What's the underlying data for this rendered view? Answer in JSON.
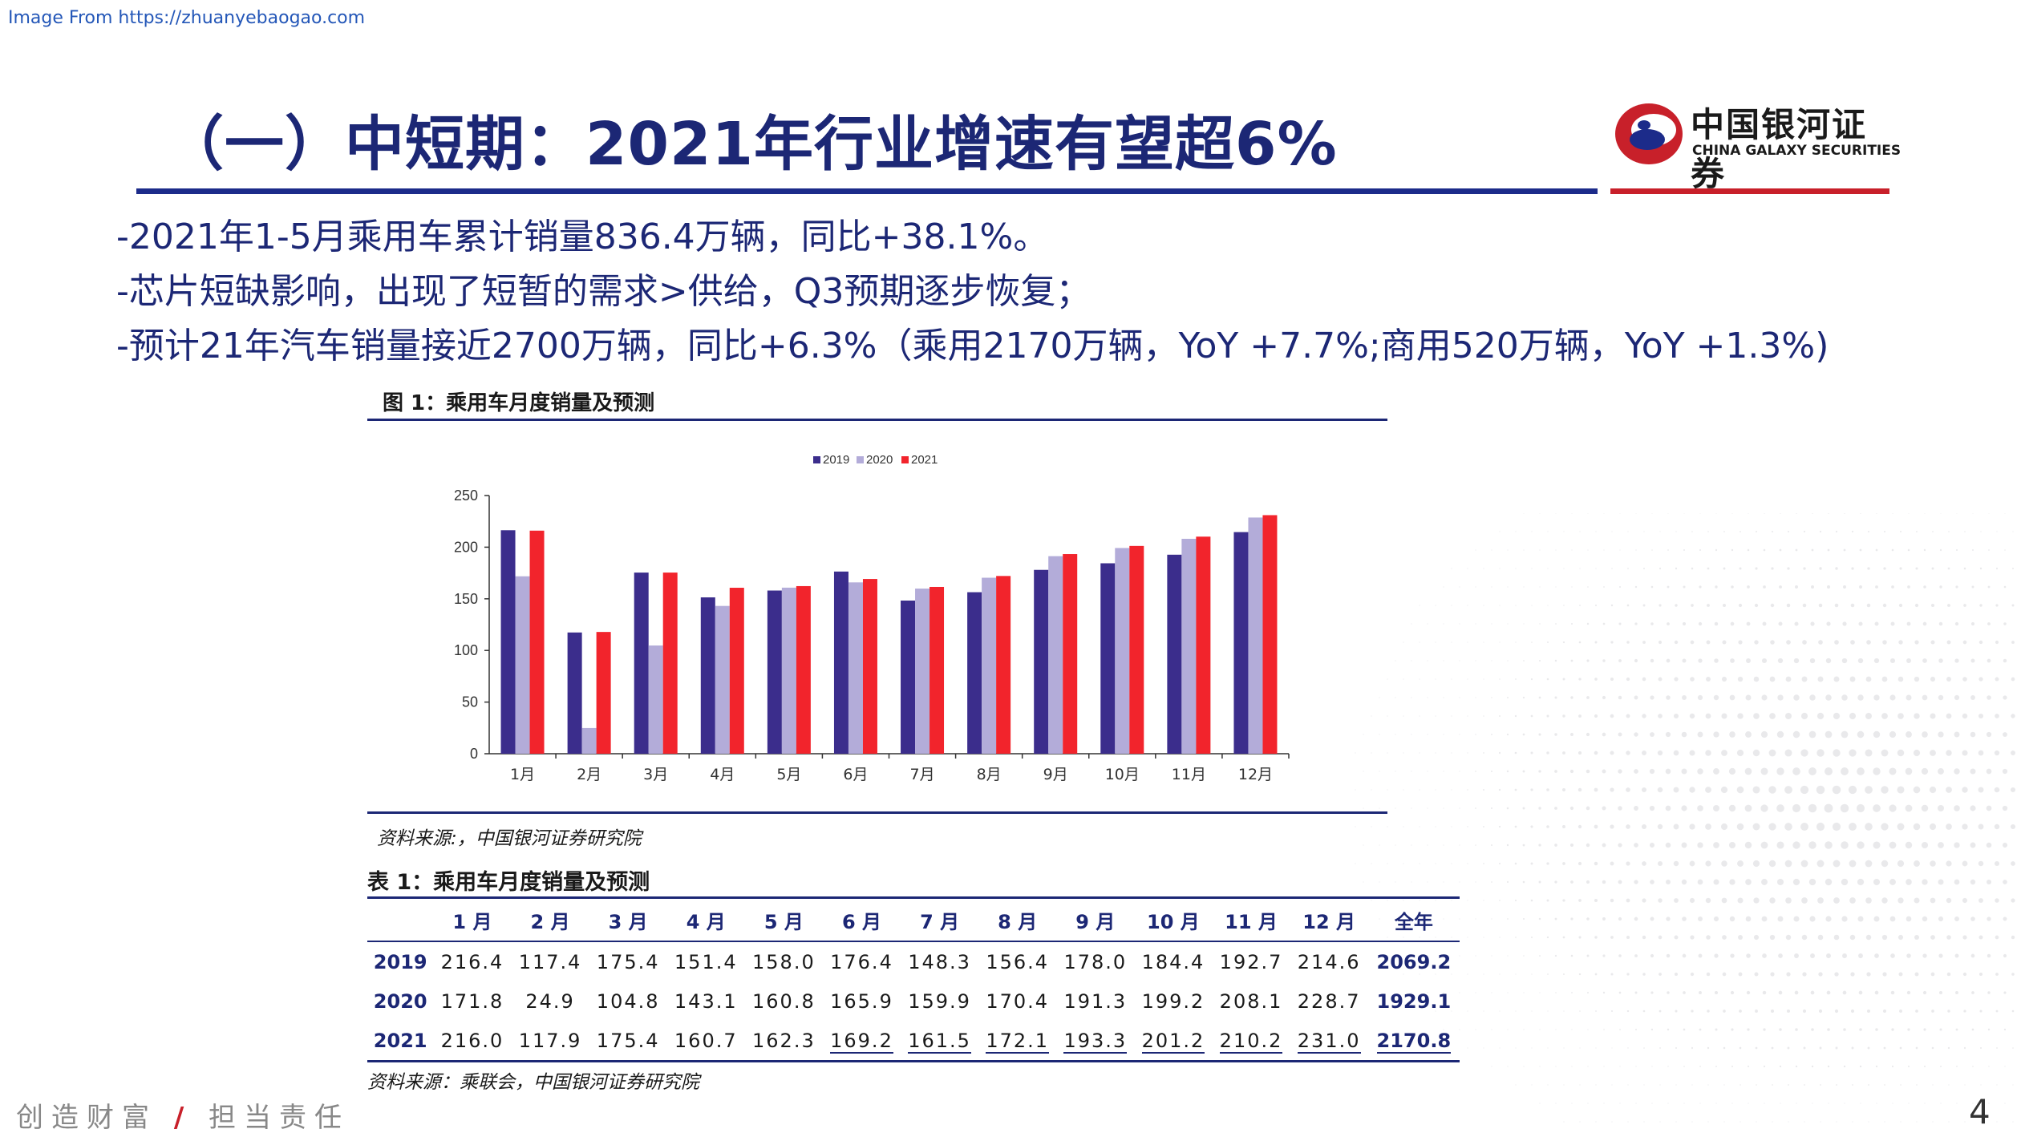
{
  "watermark": "Image From https://zhuanyebaogao.com",
  "title": "（一）中短期：2021年行业增速有望超6%",
  "logo": {
    "cn": "中国银河证券",
    "en": "CHINA GALAXY SECURITIES"
  },
  "bullets": [
    "-2021年1-5月乘用车累计销量836.4万辆，同比+38.1%。",
    "-芯片短缺影响，出现了短暂的需求>供给，Q3预期逐步恢复；",
    "-预计21年汽车销量接近2700万辆，同比+6.3%（乘用2170万辆，YoY +7.7%;商用520万辆，YoY +1.3%)"
  ],
  "figure": {
    "title": "图 1：乘用车月度销量及预测",
    "source": "资料来源:，中国银河证券研究院"
  },
  "chart_data": {
    "type": "bar",
    "categories": [
      "1月",
      "2月",
      "3月",
      "4月",
      "5月",
      "6月",
      "7月",
      "8月",
      "9月",
      "10月",
      "11月",
      "12月"
    ],
    "series": [
      {
        "name": "2019",
        "color": "#3b2d8c",
        "values": [
          216.4,
          117.4,
          175.4,
          151.4,
          158.0,
          176.4,
          148.3,
          156.4,
          178.0,
          184.4,
          192.7,
          214.6
        ]
      },
      {
        "name": "2020",
        "color": "#b3acd9",
        "values": [
          171.8,
          24.9,
          104.8,
          143.1,
          160.8,
          165.9,
          159.9,
          170.4,
          191.3,
          199.2,
          208.1,
          228.7
        ]
      },
      {
        "name": "2021",
        "color": "#f2242c",
        "values": [
          216.0,
          117.9,
          175.4,
          160.7,
          162.3,
          169.2,
          161.5,
          172.1,
          193.3,
          201.2,
          210.2,
          231.0
        ]
      }
    ],
    "yticks": [
      "0",
      "50",
      "100",
      "150",
      "200",
      "250"
    ],
    "ylim": [
      0,
      250
    ],
    "legend_position": "top-center",
    "grid": false
  },
  "table": {
    "title": "表 1：乘用车月度销量及预测",
    "headers": [
      "",
      "1 月",
      "2 月",
      "3 月",
      "4 月",
      "5 月",
      "6 月",
      "7 月",
      "8 月",
      "9 月",
      "10 月",
      "11 月",
      "12 月",
      "全年"
    ],
    "rows": [
      {
        "year": "2019",
        "cells": [
          "216.4",
          "117.4",
          "175.4",
          "151.4",
          "158.0",
          "176.4",
          "148.3",
          "156.4",
          "178.0",
          "184.4",
          "192.7",
          "214.6"
        ],
        "total": "2069.2"
      },
      {
        "year": "2020",
        "cells": [
          "171.8",
          "24.9",
          "104.8",
          "143.1",
          "160.8",
          "165.9",
          "159.9",
          "170.4",
          "191.3",
          "199.2",
          "208.1",
          "228.7"
        ],
        "total": "1929.1"
      },
      {
        "year": "2021",
        "cells": [
          "216.0",
          "117.9",
          "175.4",
          "160.7",
          "162.3",
          "169.2",
          "161.5",
          "172.1",
          "193.3",
          "201.2",
          "210.2",
          "231.0"
        ],
        "total": "2170.8"
      }
    ],
    "source": "资料来源：乘联会，中国银河证券研究院"
  },
  "footer": {
    "slogan_left": "创造财富",
    "slogan_sep": "/",
    "slogan_right": "担当责任",
    "page": "4"
  }
}
